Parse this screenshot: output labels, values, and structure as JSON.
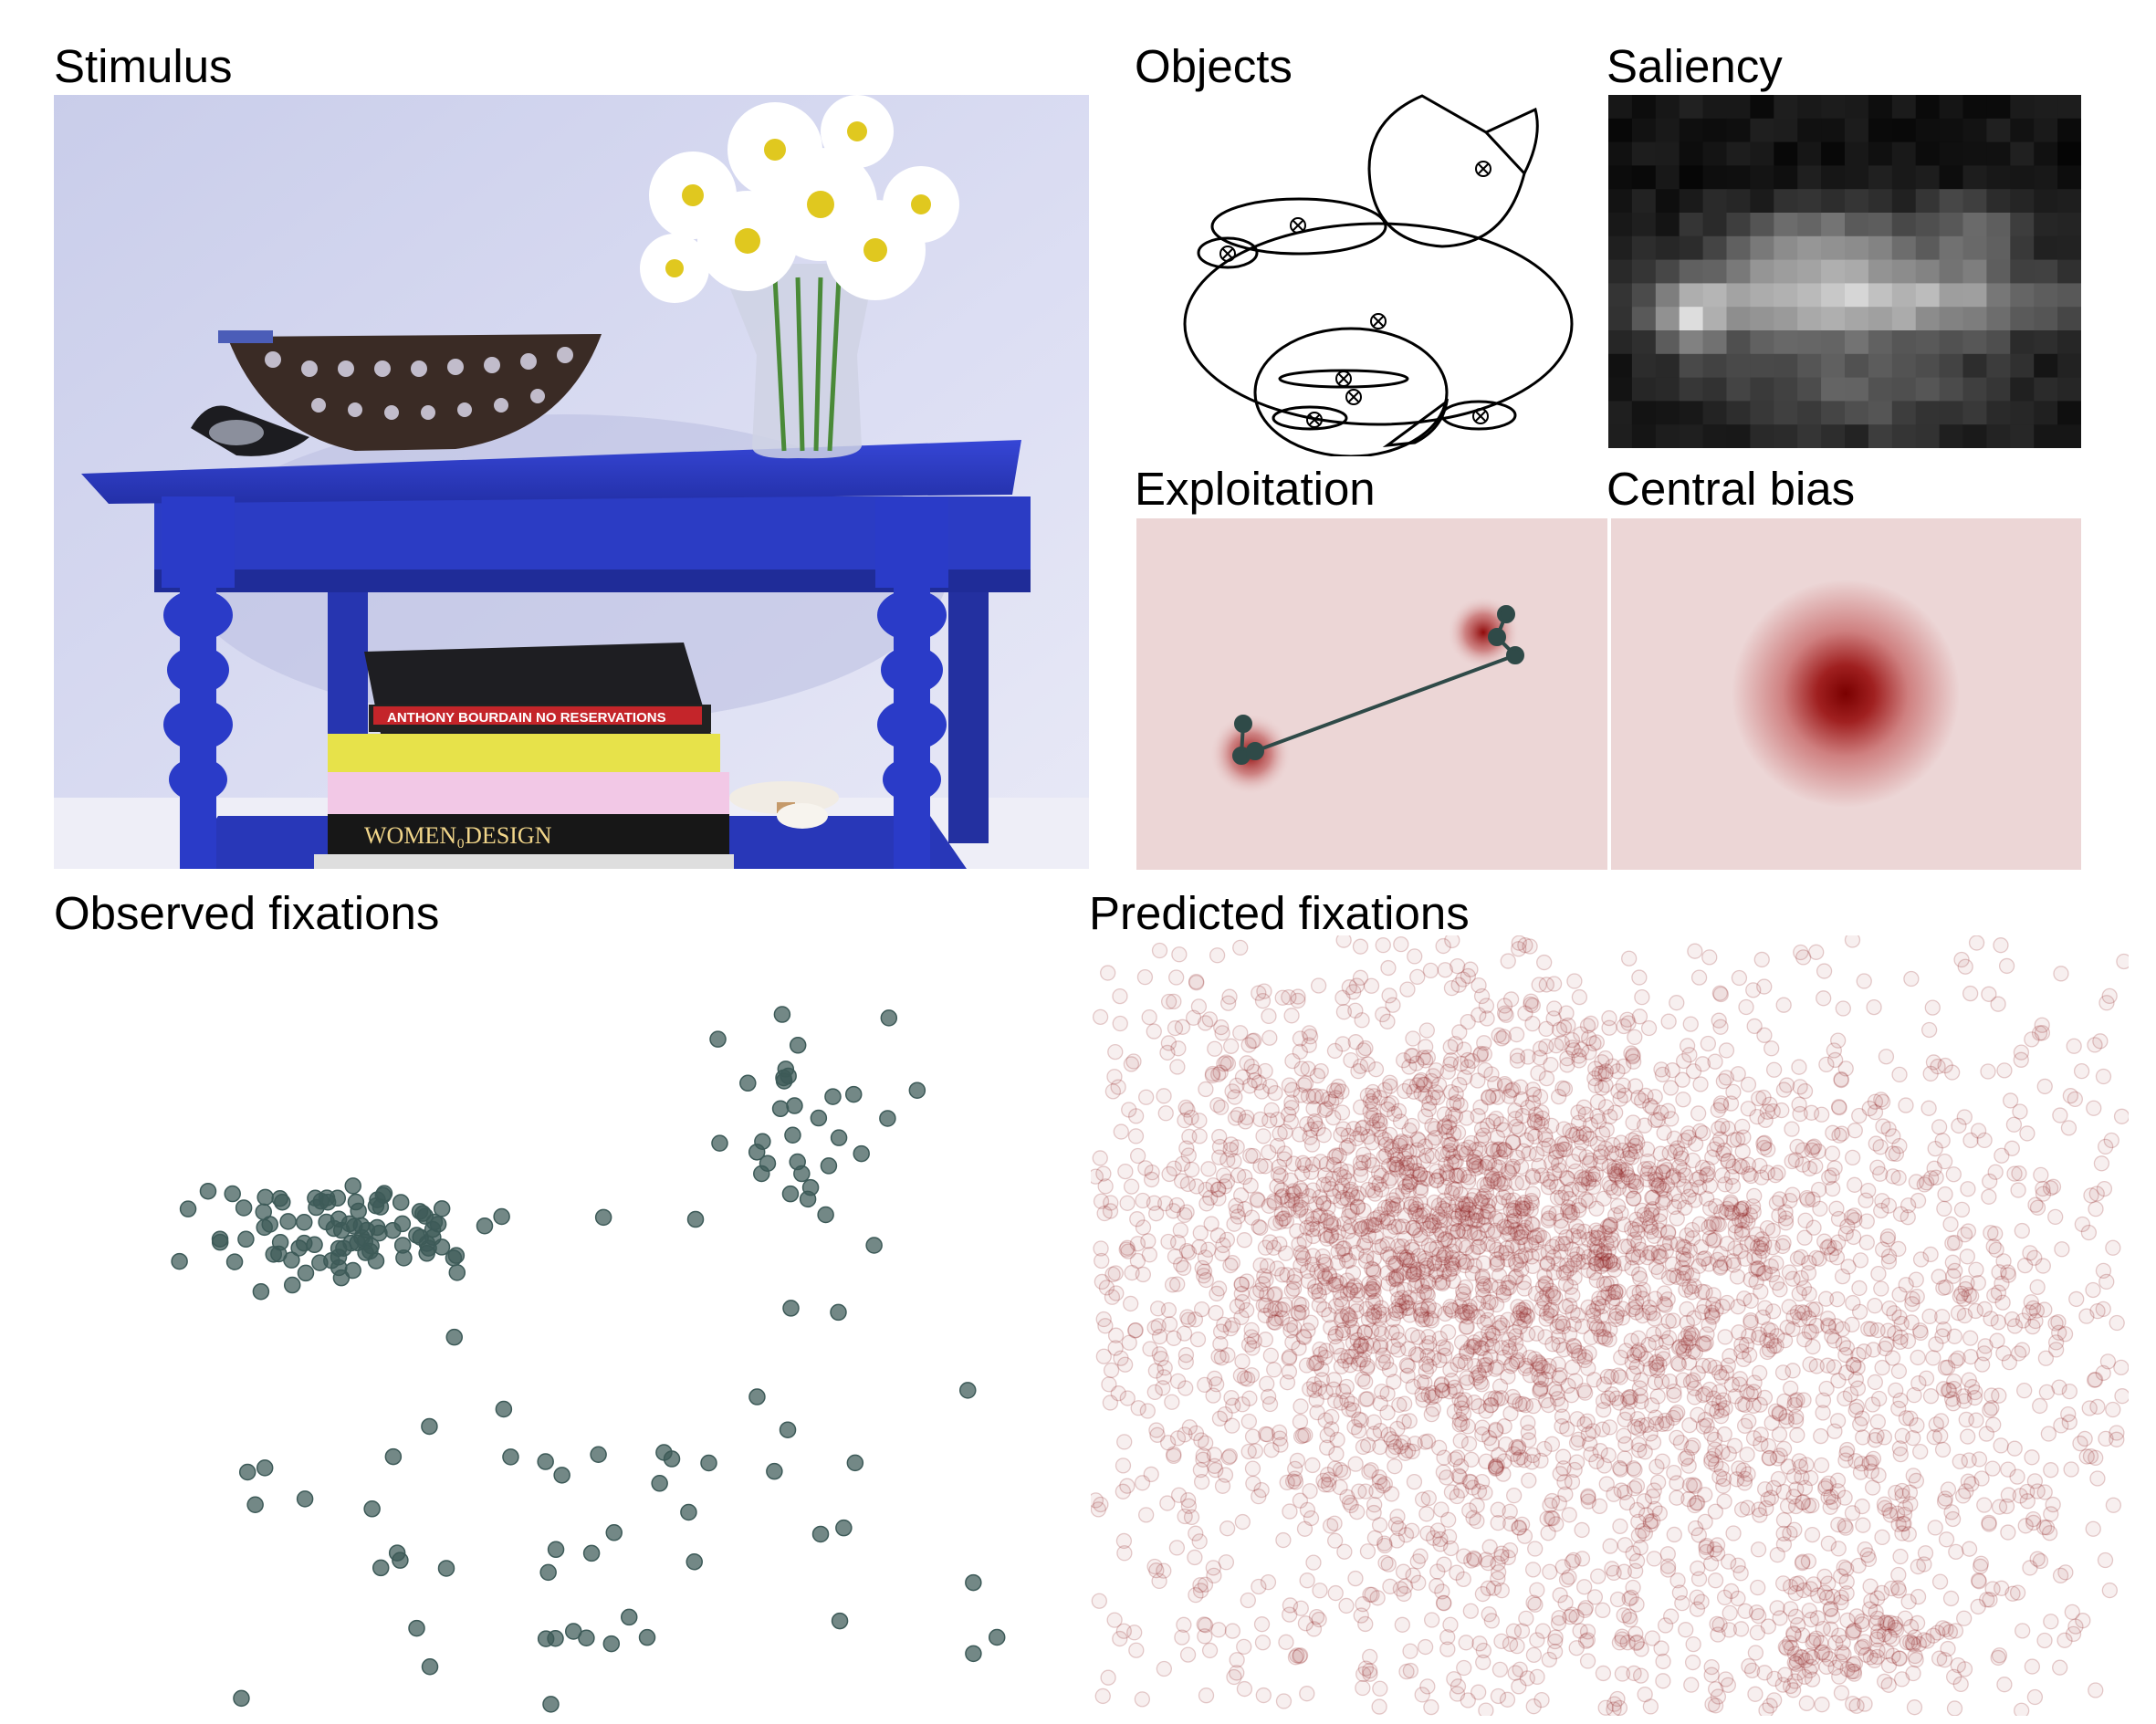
{
  "panels": {
    "stimulus": {
      "title": "Stimulus"
    },
    "objects": {
      "title": "Objects"
    },
    "saliency": {
      "title": "Saliency"
    },
    "exploitation": {
      "title": "Exploitation"
    },
    "central_bias": {
      "title": "Central bias"
    },
    "observed": {
      "title": "Observed fixations"
    },
    "predicted": {
      "title": "Predicted fixations"
    }
  },
  "stimulus_book_titles": [
    "ANTHONY BOURDAIN  NO RESERVATIONS",
    "WOMEN₀DESIGN"
  ],
  "colors": {
    "table_blue": "#2b3cc4",
    "wall": "#d9dbf2",
    "observed_point": "#3d5a58",
    "predicted_point": "#8b1a1a",
    "exploitation_bg": "#ecd6d6",
    "central_peak": "#7a0000",
    "scanpath": "#2f4a48"
  }
}
